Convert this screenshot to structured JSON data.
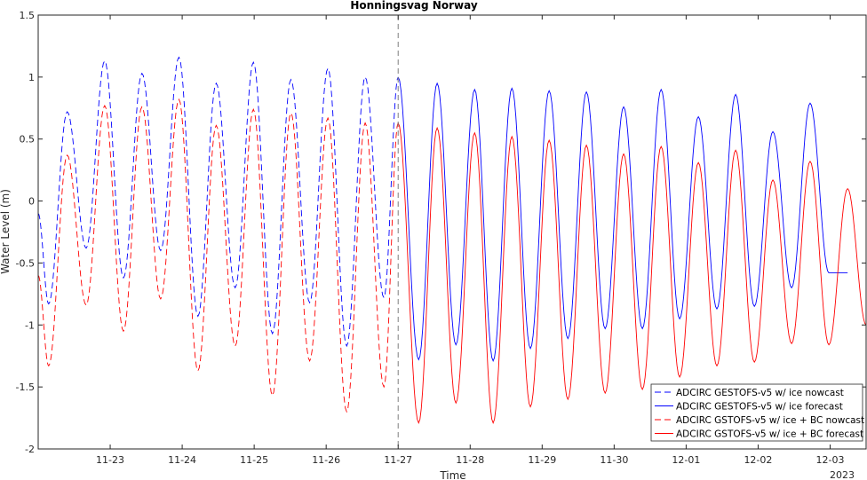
{
  "chart_data": {
    "type": "line",
    "title": "Honningsvag Norway",
    "xlabel": "Time",
    "ylabel": "Water Level (m)",
    "year_label": "2023",
    "xlim": [
      "2023-11-22T00:00",
      "2023-12-03T12:00"
    ],
    "ylim": [
      -2,
      1.5
    ],
    "x_ticks": [
      "11-23",
      "11-24",
      "11-25",
      "11-26",
      "11-27",
      "11-28",
      "11-29",
      "11-30",
      "12-01",
      "12-02",
      "12-03"
    ],
    "y_ticks": [
      "-2",
      "-1.5",
      "-1",
      "-0.5",
      "0",
      "0.5",
      "1",
      "1.5"
    ],
    "nowcast_forecast_boundary": "2023-11-27T00:00",
    "grid": false,
    "legend_position": "bottom-right",
    "series": [
      {
        "name": "ADCIRC GESTOFS-v5 w/ ice nowcast",
        "color": "#0000ff",
        "style": "dashed",
        "x": [
          "2023-11-22T00:00",
          "2023-11-22T03:30",
          "2023-11-22T09:40",
          "2023-11-22T16:00",
          "2023-11-22T22:10",
          "2023-11-23T04:25",
          "2023-11-23T10:35",
          "2023-11-23T16:50",
          "2023-11-23T22:55",
          "2023-11-24T05:15",
          "2023-11-24T11:20",
          "2023-11-24T17:40",
          "2023-11-24T23:45",
          "2023-11-25T06:05",
          "2023-11-25T12:15",
          "2023-11-25T18:30",
          "2023-11-26T00:35",
          "2023-11-26T06:50",
          "2023-11-26T13:00",
          "2023-11-26T19:15",
          "2023-11-27T00:00"
        ],
        "values": [
          -0.1,
          -0.83,
          0.72,
          -0.38,
          1.13,
          -0.62,
          1.03,
          -0.4,
          1.16,
          -0.93,
          0.95,
          -0.7,
          1.12,
          -1.07,
          0.98,
          -0.82,
          1.07,
          -1.17,
          1.0,
          -0.78,
          1.0
        ]
      },
      {
        "name": "ADCIRC GESTOFS-v5 w/ ice forecast",
        "color": "#0000ff",
        "style": "solid",
        "x": [
          "2023-11-27T00:00",
          "2023-11-27T06:50",
          "2023-11-27T13:00",
          "2023-11-27T19:15",
          "2023-11-28T01:30",
          "2023-11-28T07:40",
          "2023-11-28T13:55",
          "2023-11-28T20:05",
          "2023-11-29T02:20",
          "2023-11-29T08:35",
          "2023-11-29T14:45",
          "2023-11-29T21:00",
          "2023-11-30T03:10",
          "2023-11-30T09:25",
          "2023-11-30T15:40",
          "2023-11-30T21:50",
          "2023-12-01T04:05",
          "2023-12-01T10:15",
          "2023-12-01T16:30",
          "2023-12-01T22:45",
          "2023-12-02T04:55",
          "2023-12-02T11:10",
          "2023-12-02T17:20",
          "2023-12-02T23:35",
          "2023-12-03T05:50"
        ],
        "values": [
          1.0,
          -1.28,
          0.95,
          -1.16,
          0.9,
          -1.29,
          0.91,
          -1.19,
          0.89,
          -1.11,
          0.88,
          -1.03,
          0.76,
          -1.03,
          0.9,
          -0.95,
          0.68,
          -0.87,
          0.86,
          -0.85,
          0.56,
          -0.7,
          0.79,
          -0.58,
          -0.58
        ]
      },
      {
        "name": "ADCIRC GSTOFS-v5 w/ ice + BC nowcast",
        "color": "#ff0000",
        "style": "dashed",
        "x": [
          "2023-11-22T00:00",
          "2023-11-22T03:30",
          "2023-11-22T09:40",
          "2023-11-22T16:00",
          "2023-11-22T22:10",
          "2023-11-23T04:25",
          "2023-11-23T10:35",
          "2023-11-23T16:50",
          "2023-11-23T22:55",
          "2023-11-24T05:15",
          "2023-11-24T11:20",
          "2023-11-24T17:40",
          "2023-11-24T23:45",
          "2023-11-25T06:05",
          "2023-11-25T12:15",
          "2023-11-25T18:30",
          "2023-11-26T00:35",
          "2023-11-26T06:50",
          "2023-11-26T13:00",
          "2023-11-26T19:15",
          "2023-11-27T00:00"
        ],
        "values": [
          -0.6,
          -1.33,
          0.37,
          -0.84,
          0.77,
          -1.05,
          0.76,
          -0.79,
          0.82,
          -1.37,
          0.61,
          -1.17,
          0.74,
          -1.57,
          0.71,
          -1.29,
          0.67,
          -1.7,
          0.63,
          -1.5,
          0.63
        ]
      },
      {
        "name": "ADCIRC GSTOFS-v5 w/ ice + BC forecast",
        "color": "#ff0000",
        "style": "solid",
        "x": [
          "2023-11-27T00:00",
          "2023-11-27T06:50",
          "2023-11-27T13:00",
          "2023-11-27T19:15",
          "2023-11-28T01:30",
          "2023-11-28T07:40",
          "2023-11-28T13:55",
          "2023-11-28T20:05",
          "2023-11-29T02:20",
          "2023-11-29T08:35",
          "2023-11-29T14:45",
          "2023-11-29T21:00",
          "2023-11-30T03:10",
          "2023-11-30T09:25",
          "2023-11-30T15:40",
          "2023-11-30T21:50",
          "2023-12-01T04:05",
          "2023-12-01T10:15",
          "2023-12-01T16:30",
          "2023-12-01T22:45",
          "2023-12-02T04:55",
          "2023-12-02T11:10",
          "2023-12-02T17:20",
          "2023-12-02T23:35",
          "2023-12-03T05:50",
          "2023-12-03T12:00"
        ],
        "values": [
          0.63,
          -1.79,
          0.59,
          -1.63,
          0.55,
          -1.79,
          0.52,
          -1.66,
          0.49,
          -1.6,
          0.45,
          -1.55,
          0.38,
          -1.52,
          0.44,
          -1.42,
          0.31,
          -1.33,
          0.41,
          -1.3,
          0.17,
          -1.15,
          0.32,
          -1.16,
          0.1,
          -1.0
        ]
      }
    ]
  }
}
